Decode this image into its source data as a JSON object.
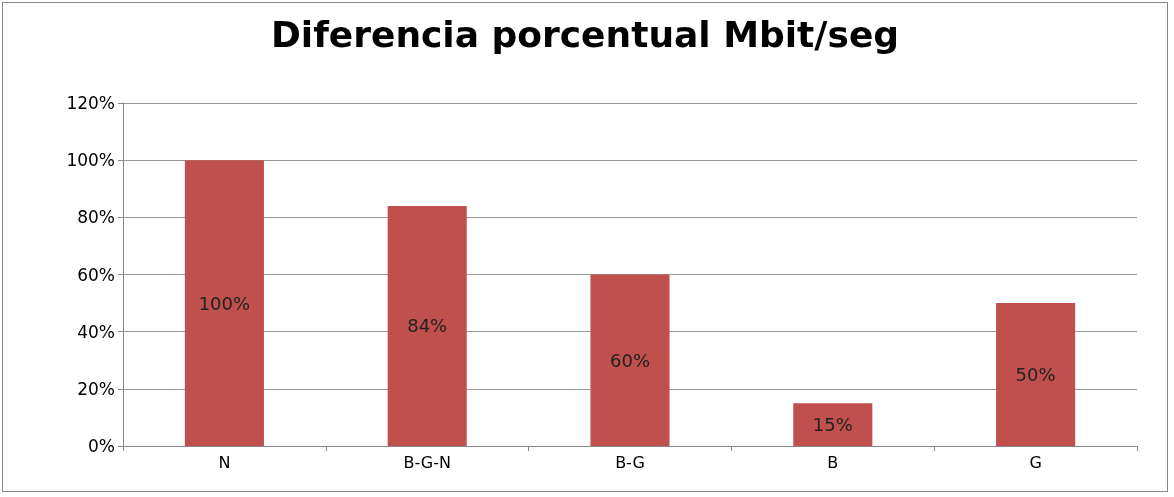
{
  "chart_data": {
    "type": "bar",
    "title": "Diferencia porcentual Mbit/seg",
    "categories": [
      "N",
      "B-G-N",
      "B-G",
      "B",
      "G"
    ],
    "values": [
      100,
      84,
      60,
      15,
      50
    ],
    "value_labels": [
      "100%",
      "84%",
      "60%",
      "15%",
      "50%"
    ],
    "color": "#c0504d",
    "ylim": [
      0,
      120
    ],
    "yticks": [
      {
        "value": 0,
        "label": "0%"
      },
      {
        "value": 20,
        "label": "20%"
      },
      {
        "value": 40,
        "label": "40%"
      },
      {
        "value": 60,
        "label": "60%"
      },
      {
        "value": 80,
        "label": "80%"
      },
      {
        "value": 100,
        "label": "100%"
      },
      {
        "value": 120,
        "label": "120%"
      }
    ],
    "grid": "y"
  }
}
